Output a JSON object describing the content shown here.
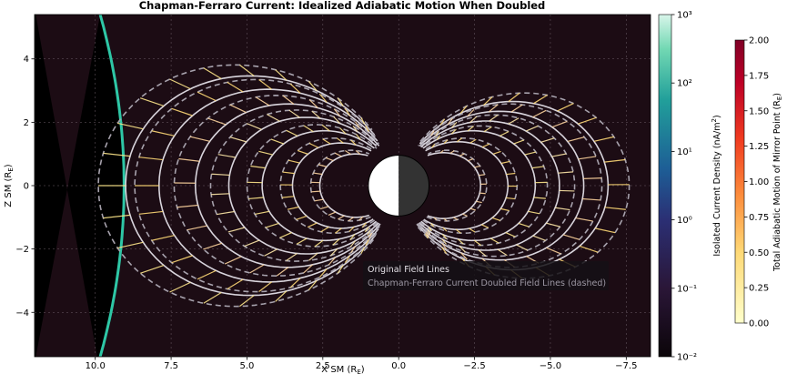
{
  "chart_data": {
    "type": "line",
    "title": "Chapman-Ferraro Current: Idealized Adiabatic Motion When Doubled",
    "xlabel": "X SM (R_E)",
    "ylabel": "Z SM (R_E)",
    "xlim": [
      12.0,
      -8.3
    ],
    "ylim": [
      -5.4,
      5.4
    ],
    "x_ticks": [
      10.0,
      7.5,
      5.0,
      2.5,
      0.0,
      -2.5,
      -5.0,
      -7.5
    ],
    "y_ticks": [
      4,
      2,
      0,
      -2,
      -4
    ],
    "grid": true,
    "x_axis_inverted": true,
    "background_color": "#1c0c14",
    "magnetopause_color": "#2ec7a6",
    "series": [
      {
        "name": "Original Field Lines",
        "style": "solid",
        "color": "#d8d4dc",
        "dayside_equatorial_distances": [
          9.0,
          7.9,
          6.7,
          5.6,
          4.5,
          3.5,
          2.6
        ],
        "nightside_equatorial_distances": [
          -6.9,
          -6.1,
          -5.3,
          -4.5,
          -3.6,
          -2.7
        ]
      },
      {
        "name": "Chapman-Ferraro Current Doubled Field Lines (dashed)",
        "style": "dashed",
        "color": "#a7a2ad",
        "dayside_equatorial_distances": [
          9.9,
          8.7,
          7.4,
          6.2,
          5.0,
          3.9,
          2.9
        ],
        "nightside_equatorial_distances": [
          -7.6,
          -6.7,
          -5.8,
          -4.9,
          -3.9,
          -2.9
        ]
      }
    ],
    "legend": {
      "placement": "lower-center",
      "entries": [
        "Original Field Lines",
        "Chapman-Ferraro Current Doubled Field Lines (dashed)"
      ]
    },
    "colorbar_current": {
      "label": "Isolated Current Density (nA/m²)",
      "scale": "log",
      "range": [
        0.01,
        1000
      ],
      "ticks": [
        "10⁻²",
        "10⁻¹",
        "10⁰",
        "10¹",
        "10²",
        "10³"
      ],
      "colormap": "dark-purple-blue-teal"
    },
    "colorbar_mirror": {
      "label": "Total Adiabatic Motion of Mirror Point (R_E)",
      "range": [
        0.0,
        2.0
      ],
      "ticks": [
        "0.00",
        "0.25",
        "0.50",
        "0.75",
        "1.00",
        "1.25",
        "1.50",
        "1.75",
        "2.00"
      ],
      "colormap": "YlOrRd"
    }
  }
}
